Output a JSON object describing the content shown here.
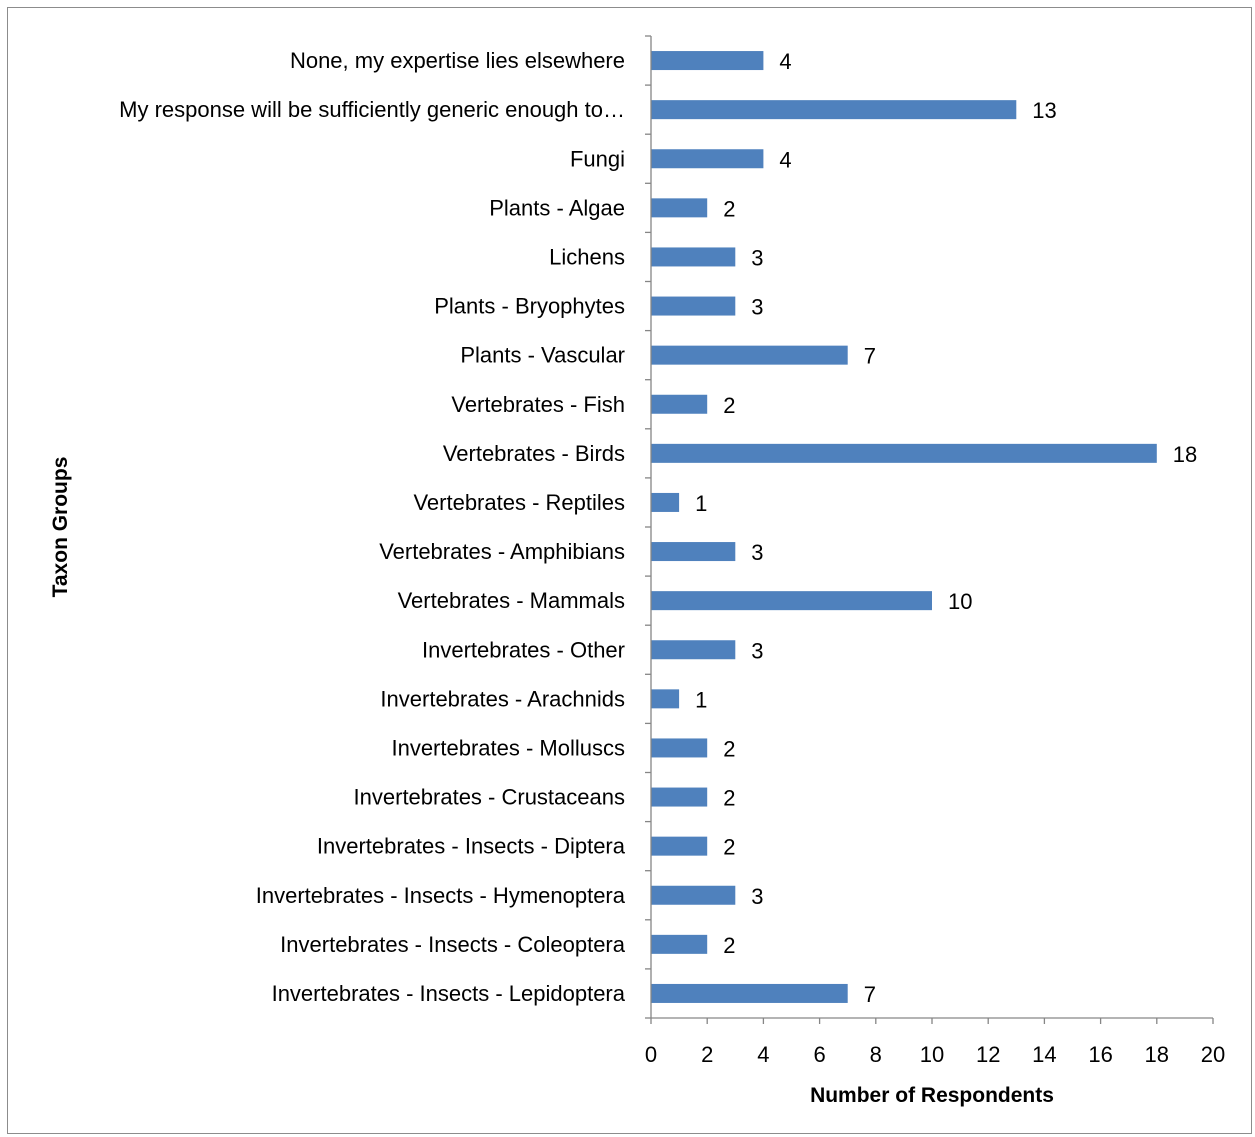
{
  "chart_data": {
    "type": "bar",
    "orientation": "horizontal",
    "title": "",
    "xlabel": "Number of Respondents",
    "ylabel": "Taxon Groups",
    "xlim": [
      0,
      20
    ],
    "xticks": [
      0,
      2,
      4,
      6,
      8,
      10,
      12,
      14,
      16,
      18,
      20
    ],
    "grid": false,
    "legend": "none",
    "bar_color": "#4f81bd",
    "categories": [
      "None, my expertise lies elsewhere",
      "My response will be sufficiently generic enough to…",
      "Fungi",
      "Plants - Algae",
      "Lichens",
      "Plants - Bryophytes",
      "Plants - Vascular",
      "Vertebrates - Fish",
      "Vertebrates - Birds",
      "Vertebrates - Reptiles",
      "Vertebrates - Amphibians",
      "Vertebrates - Mammals",
      "Invertebrates - Other",
      "Invertebrates - Arachnids",
      "Invertebrates - Molluscs",
      "Invertebrates - Crustaceans",
      "Invertebrates - Insects - Diptera",
      "Invertebrates - Insects - Hymenoptera",
      "Invertebrates - Insects - Coleoptera",
      "Invertebrates - Insects - Lepidoptera"
    ],
    "values": [
      4,
      13,
      4,
      2,
      3,
      3,
      7,
      2,
      18,
      1,
      3,
      10,
      3,
      1,
      2,
      2,
      2,
      3,
      2,
      7
    ]
  }
}
